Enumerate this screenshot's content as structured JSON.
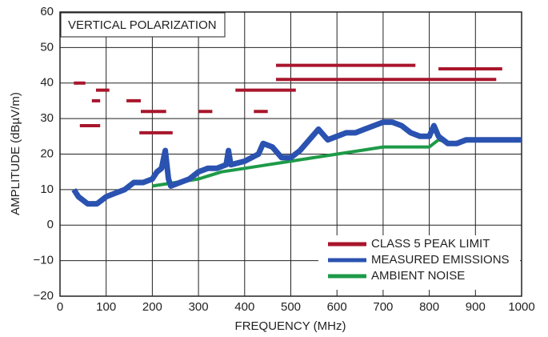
{
  "chart_data": {
    "type": "line",
    "xlabel": "FREQUENCY (MHz)",
    "ylabel": "AMPLITUDE (dBµV/m)",
    "annotation": "VERTICAL POLARIZATION",
    "xlim": [
      0,
      1000
    ],
    "xticks": [
      0,
      100,
      200,
      300,
      400,
      500,
      600,
      700,
      800,
      900,
      1000
    ],
    "ylim": [
      -20,
      60
    ],
    "yticks": [
      {
        "value": -20,
        "label": "−20"
      },
      {
        "value": -10,
        "label": "−10"
      },
      0,
      10,
      20,
      30,
      40,
      50,
      60
    ],
    "grid": true,
    "legend": "lower right",
    "series": [
      {
        "name": "CLASS 5 PEAK LIMIT",
        "color": "#a8162c",
        "x": [
          30,
          55,
          null,
          43,
          87,
          null,
          78,
          107,
          null,
          69,
          87,
          null,
          144,
          175,
          null,
          175,
          230,
          null,
          172,
          244,
          null,
          300,
          330,
          null,
          380,
          511,
          null,
          420,
          450,
          null,
          468,
          770,
          null,
          468,
          945,
          null,
          820,
          958
        ],
        "values": [
          40,
          40,
          null,
          28,
          28,
          null,
          38,
          38,
          null,
          35,
          35,
          null,
          35,
          35,
          null,
          32,
          32,
          null,
          26,
          26,
          null,
          32,
          32,
          null,
          38,
          38,
          null,
          32,
          32,
          null,
          45,
          45,
          null,
          41,
          41,
          null,
          44,
          44
        ]
      },
      {
        "name": "MEASURED EMISSIONS",
        "color": "#2a52b0",
        "x": [
          30,
          40,
          60,
          80,
          100,
          120,
          140,
          160,
          180,
          200,
          210,
          220,
          228,
          235,
          240,
          260,
          280,
          300,
          320,
          340,
          360,
          365,
          370,
          400,
          430,
          440,
          460,
          480,
          500,
          520,
          540,
          560,
          580,
          600,
          620,
          640,
          660,
          680,
          700,
          720,
          740,
          760,
          780,
          800,
          810,
          820,
          840,
          860,
          880,
          900,
          940,
          980,
          1000
        ],
        "values": [
          10,
          8,
          6,
          6,
          8,
          9,
          10,
          12,
          12,
          13,
          15,
          16,
          21,
          13,
          11,
          12,
          13,
          15,
          16,
          16,
          17,
          21,
          17,
          18,
          20,
          23,
          22,
          19,
          19,
          21,
          24,
          27,
          24,
          25,
          26,
          26,
          27,
          28,
          29,
          29,
          28,
          26,
          25,
          25,
          28,
          25,
          23,
          23,
          24,
          24,
          24,
          24,
          24
        ]
      },
      {
        "name": "AMBIENT NOISE",
        "color": "#1e9a48",
        "x": [
          200,
          250,
          300,
          350,
          400,
          450,
          500,
          550,
          600,
          650,
          700,
          750,
          800,
          820,
          850,
          900,
          1000
        ],
        "values": [
          11,
          12,
          13,
          15,
          16,
          17,
          18,
          19,
          20,
          21,
          22,
          22,
          22,
          24,
          23,
          24,
          24
        ]
      }
    ]
  }
}
